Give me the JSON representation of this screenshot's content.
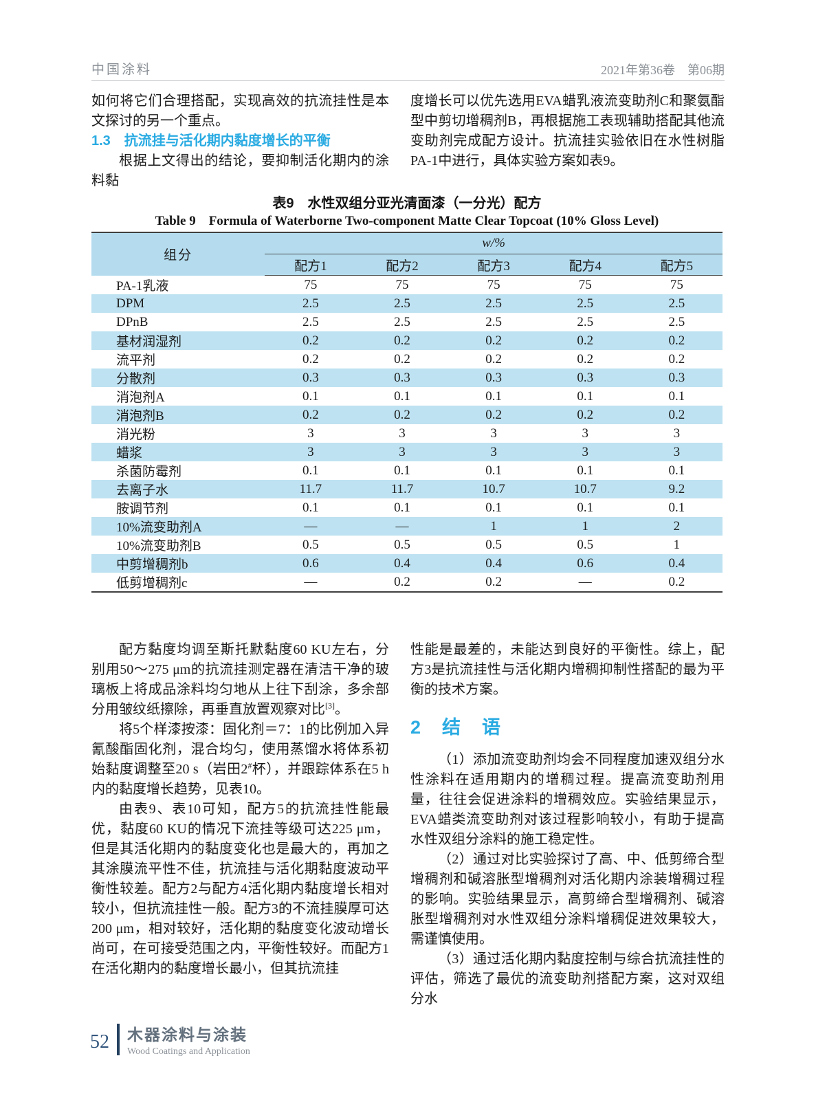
{
  "colors": {
    "accent_cyan": "#2aabe2",
    "table_header": "#b4dcee",
    "table_stripe": "#bee2f1",
    "footer_blue": "#33567d",
    "footer_bar": "#24405f",
    "head_gray": "#8a9096"
  },
  "running_head": {
    "journal_zh": "中国涂料",
    "issue_info": "2021年第36卷　第06期"
  },
  "top_left": {
    "para1": "如何将它们合理搭配，实现高效的抗流挂性是本文探讨的另一个重点。",
    "heading": "1.3　抗流挂与活化期内黏度增长的平衡",
    "para2": "根据上文得出的结论，要抑制活化期内的涂料黏"
  },
  "top_right": {
    "para1": "度增长可以优先选用EVA蜡乳液流变助剂C和聚氨酯型中剪切增稠剂B，再根据施工表现辅助搭配其他流变助剂完成配方设计。抗流挂实验依旧在水性树脂PA-1中进行，具体实验方案如表9。"
  },
  "table": {
    "title_zh": "表9　水性双组分亚光清面漆（一分光）配方",
    "title_en": "Table 9　Formula of Waterborne Two-component Matte Clear Topcoat (10% Gloss Level)",
    "col_component": "组分",
    "span_header": "w/%",
    "columns": [
      "配方1",
      "配方2",
      "配方3",
      "配方4",
      "配方5"
    ],
    "rows": [
      {
        "label": "PA-1乳液",
        "values": [
          "75",
          "75",
          "75",
          "75",
          "75"
        ]
      },
      {
        "label": "DPM",
        "values": [
          "2.5",
          "2.5",
          "2.5",
          "2.5",
          "2.5"
        ]
      },
      {
        "label": "DPnB",
        "values": [
          "2.5",
          "2.5",
          "2.5",
          "2.5",
          "2.5"
        ]
      },
      {
        "label": "基材润湿剂",
        "values": [
          "0.2",
          "0.2",
          "0.2",
          "0.2",
          "0.2"
        ]
      },
      {
        "label": "流平剂",
        "values": [
          "0.2",
          "0.2",
          "0.2",
          "0.2",
          "0.2"
        ]
      },
      {
        "label": "分散剂",
        "values": [
          "0.3",
          "0.3",
          "0.3",
          "0.3",
          "0.3"
        ]
      },
      {
        "label": "消泡剂A",
        "values": [
          "0.1",
          "0.1",
          "0.1",
          "0.1",
          "0.1"
        ]
      },
      {
        "label": "消泡剂B",
        "values": [
          "0.2",
          "0.2",
          "0.2",
          "0.2",
          "0.2"
        ]
      },
      {
        "label": "消光粉",
        "values": [
          "3",
          "3",
          "3",
          "3",
          "3"
        ]
      },
      {
        "label": "蜡浆",
        "values": [
          "3",
          "3",
          "3",
          "3",
          "3"
        ]
      },
      {
        "label": "杀菌防霉剂",
        "values": [
          "0.1",
          "0.1",
          "0.1",
          "0.1",
          "0.1"
        ]
      },
      {
        "label": "去离子水",
        "values": [
          "11.7",
          "11.7",
          "10.7",
          "10.7",
          "9.2"
        ]
      },
      {
        "label": "胺调节剂",
        "values": [
          "0.1",
          "0.1",
          "0.1",
          "0.1",
          "0.1"
        ]
      },
      {
        "label": "10%流变助剂A",
        "values": [
          "—",
          "—",
          "1",
          "1",
          "2"
        ]
      },
      {
        "label": "10%流变助剂B",
        "values": [
          "0.5",
          "0.5",
          "0.5",
          "0.5",
          "1"
        ]
      },
      {
        "label": "中剪增稠剂b",
        "values": [
          "0.6",
          "0.4",
          "0.4",
          "0.6",
          "0.4"
        ]
      },
      {
        "label": "低剪增稠剂c",
        "values": [
          "—",
          "0.2",
          "0.2",
          "—",
          "0.2"
        ]
      }
    ]
  },
  "bottom_left": {
    "p1_a": "配方黏度均调至斯托默黏度60 KU左右，分别用50～275 μm的抗流挂测定器在清洁干净的玻璃板上将成品涂料均匀地从上往下刮涂，多余部分用皱纹纸擦除，再垂直放置观察对比",
    "p1_sup": "[3]",
    "p1_b": "。",
    "p2_a": "将5个样漆按漆：固化剂＝7：1的比例加入异氰酸酯固化剂，混合均匀，使用蒸馏水将体系初始黏度调整至20 s（岩田2",
    "p2_sup": "#",
    "p2_b": "杯），并跟踪体系在5 h内的黏度增长趋势，见表10。",
    "p3": "由表9、表10可知，配方5的抗流挂性能最优，黏度60 KU的情况下流挂等级可达225 μm，但是其活化期内的黏度变化也是最大的，再加之其涂膜流平性不佳，抗流挂与活化期黏度波动平衡性较差。配方2与配方4活化期内黏度增长相对较小，但抗流挂性一般。配方3的不流挂膜厚可达200 μm，相对较好，活化期的黏度变化波动增长尚可，在可接受范围之内，平衡性较好。而配方1在活化期内的黏度增长最小，但其抗流挂"
  },
  "bottom_right": {
    "p1": "性能是最差的，未能达到良好的平衡性。综上，配方3是抗流挂性与活化期内增稠抑制性搭配的最为平衡的技术方案。",
    "heading": "2　结　语",
    "p2": "（1）添加流变助剂均会不同程度加速双组分水性涂料在适用期内的增稠过程。提高流变助剂用量，往往会促进涂料的增稠效应。实验结果显示，EVA蜡类流变助剂对该过程影响较小，有助于提高水性双组分涂料的施工稳定性。",
    "p3": "（2）通过对比实验探讨了高、中、低剪缔合型增稠剂和碱溶胀型增稠剂对活化期内涂装增稠过程的影响。实验结果显示，高剪缔合型增稠剂、碱溶胀型增稠剂对水性双组分涂料增稠促进效果较大，需谨慎使用。",
    "p4": "（3）通过活化期内黏度控制与综合抗流挂性的评估，筛选了最优的流变助剂搭配方案，这对双组分水"
  },
  "footer": {
    "page_number": "52",
    "journal_zh": "木器涂料与涂装",
    "journal_en": "Wood Coatings and Application"
  }
}
